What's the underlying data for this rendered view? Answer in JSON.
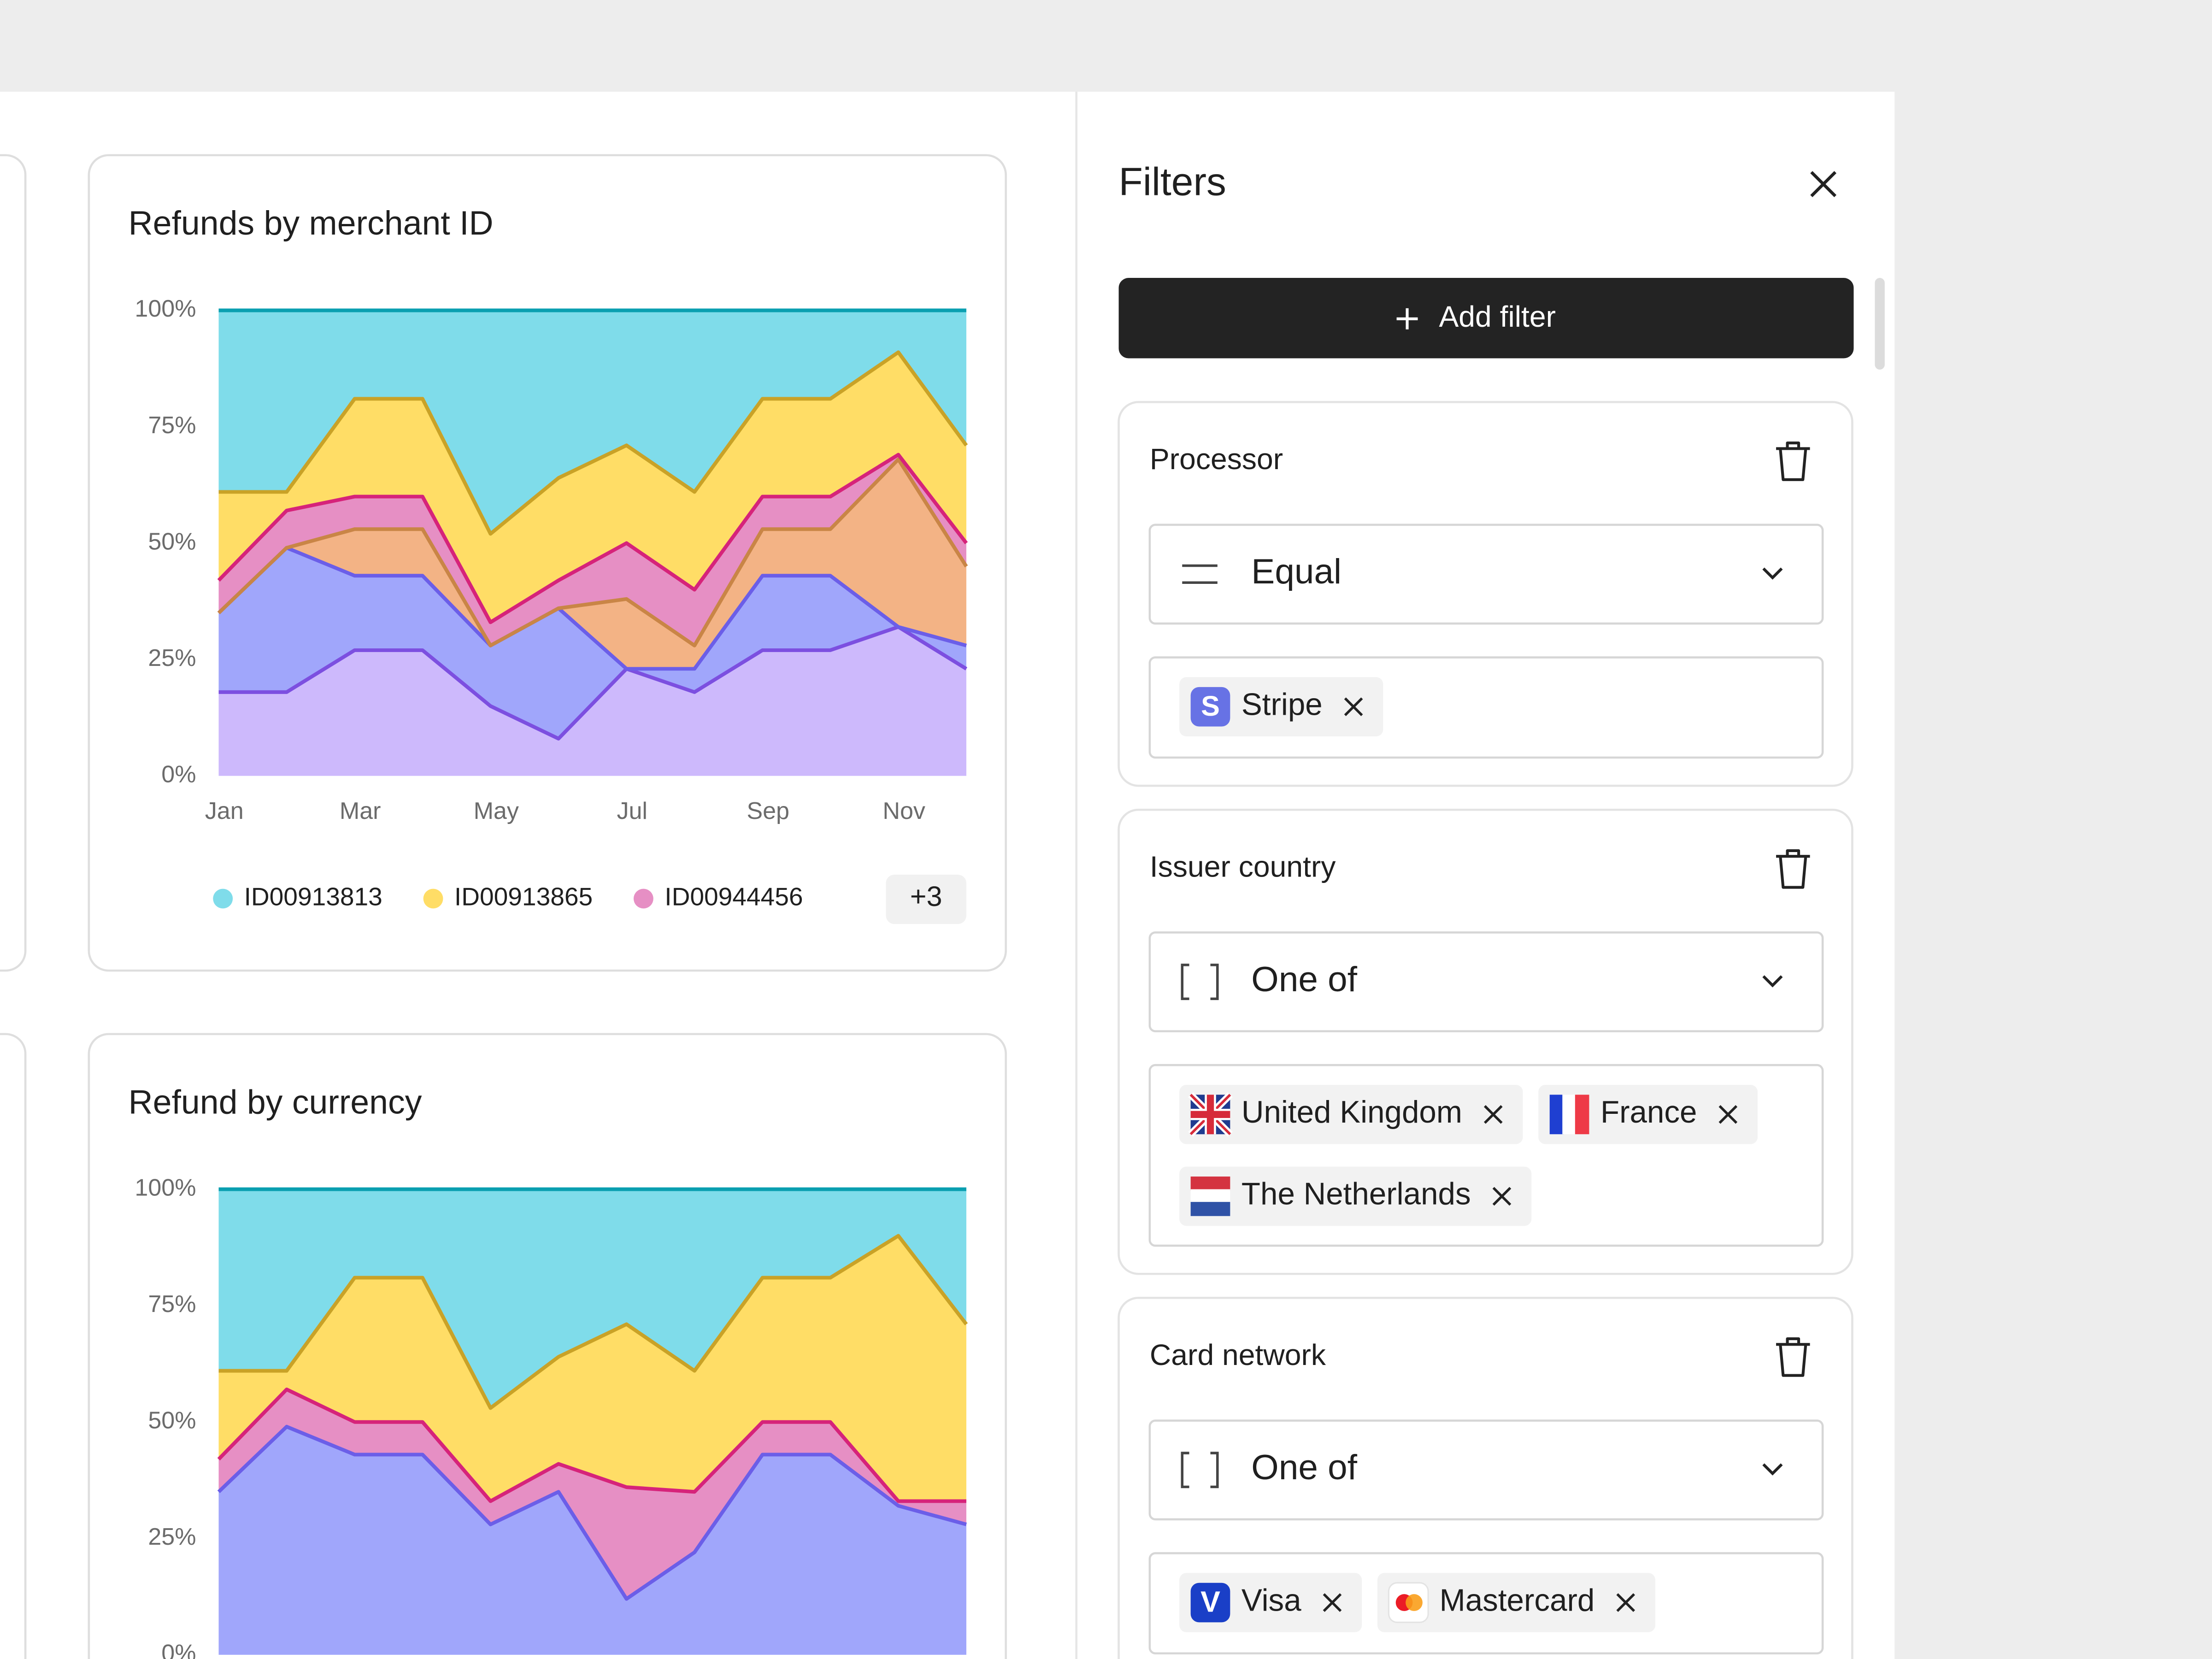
{
  "chart_data": [
    {
      "type": "area",
      "stacked": true,
      "title": "Refunds by merchant ID",
      "categories": [
        "Jan",
        null,
        "Mar",
        null,
        "May",
        null,
        "Jul",
        null,
        "Sep",
        null,
        "Nov",
        null
      ],
      "ylim": [
        0,
        100
      ],
      "yticks": [
        {
          "value": 0,
          "label": "0%"
        },
        {
          "value": 25,
          "label": "25%"
        },
        {
          "value": 50,
          "label": "50%"
        },
        {
          "value": 75,
          "label": "75%"
        },
        {
          "value": 100,
          "label": "100%"
        }
      ],
      "grid": false,
      "legend_more": "+3",
      "series": [
        {
          "name": "ID00913813",
          "color": "#7fdcea",
          "line_color": "#0a9fb0",
          "values": [
            39,
            39,
            19,
            19,
            48,
            36,
            29,
            39,
            19,
            19,
            9,
            29
          ]
        },
        {
          "name": "ID00913865",
          "color": "#ffdd66",
          "line_color": "#c9a227",
          "values": [
            19,
            4,
            21,
            21,
            19,
            22,
            21,
            21,
            21,
            21,
            22,
            21
          ]
        },
        {
          "name": "ID00944456",
          "color": "#e68fc4",
          "line_color": "#d6237a",
          "values": [
            7,
            8,
            7,
            7,
            5,
            6,
            12,
            12,
            7,
            7,
            1,
            5
          ]
        },
        {
          "color": "#f3b385",
          "line_color": "#c98546",
          "values": [
            0,
            0,
            10,
            10,
            0,
            0,
            15,
            5,
            10,
            10,
            36,
            17
          ]
        },
        {
          "color": "#a0a6fb",
          "line_color": "#6b5ee8",
          "values": [
            17,
            31,
            16,
            16,
            13,
            28,
            0,
            5,
            16,
            16,
            0,
            5
          ]
        },
        {
          "color": "#cdb9fc",
          "line_color": "#7c4fe0",
          "values": [
            18,
            18,
            27,
            27,
            15,
            8,
            23,
            18,
            27,
            27,
            32,
            23
          ]
        }
      ]
    },
    {
      "type": "area",
      "stacked": true,
      "title": "Refund by currency",
      "ylim": [
        0,
        100
      ],
      "yticks": [
        {
          "value": 0,
          "label": "0%"
        },
        {
          "value": 25,
          "label": "25%"
        },
        {
          "value": 50,
          "label": "50%"
        },
        {
          "value": 75,
          "label": "75%"
        },
        {
          "value": 100,
          "label": "100%"
        }
      ],
      "grid": false,
      "series": [
        {
          "color": "#7fdcea",
          "line_color": "#0a9fb0",
          "values": [
            39,
            39,
            19,
            19,
            47,
            36,
            29,
            39,
            19,
            19,
            10,
            29
          ]
        },
        {
          "color": "#ffdd66",
          "line_color": "#c9a227",
          "values": [
            19,
            4,
            31,
            31,
            20,
            23,
            35,
            26,
            31,
            31,
            57,
            38
          ]
        },
        {
          "color": "#e68fc4",
          "line_color": "#d6237a",
          "values": [
            7,
            8,
            7,
            7,
            5,
            6,
            24,
            13,
            7,
            7,
            1,
            5
          ]
        },
        {
          "color": "#a0a6fb",
          "line_color": "#6b5ee8",
          "values": [
            35,
            49,
            43,
            43,
            28,
            35,
            12,
            22,
            43,
            43,
            32,
            28
          ]
        }
      ]
    }
  ],
  "filters": {
    "title": "Filters",
    "add_button": "Add filter",
    "groups": [
      {
        "label": "Processor",
        "operator": "Equal",
        "values": [
          "Stripe"
        ]
      },
      {
        "label": "Issuer country",
        "operator": "One of",
        "values": [
          "United Kingdom",
          "France",
          "The Netherlands"
        ]
      },
      {
        "label": "Card network",
        "operator": "One of",
        "values": [
          "Visa",
          "Mastercard"
        ]
      }
    ]
  }
}
